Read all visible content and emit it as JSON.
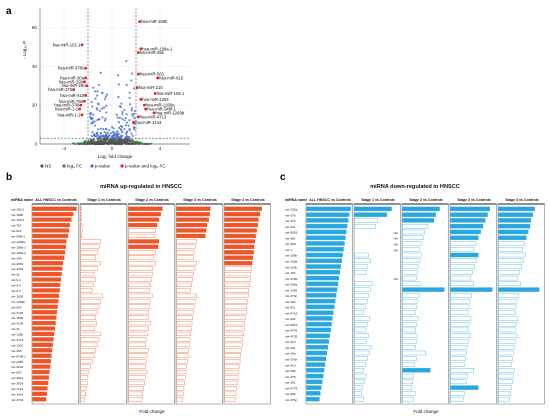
{
  "panels": {
    "a": "a",
    "b": "b",
    "c": "c"
  },
  "chart_data": [
    {
      "type": "scatter",
      "panel": "a",
      "title": "",
      "xlabel": "Log₂ fold change",
      "ylabel": "- Log₁₀ P",
      "xlim": [
        -6,
        6.5
      ],
      "ylim": [
        0,
        70
      ],
      "xticks": [
        -4,
        0,
        4
      ],
      "yticks": [
        0,
        20,
        40,
        60
      ],
      "fc_cutoff": [
        -2,
        2
      ],
      "p_cutoff": 3,
      "legend": [
        "NS",
        "log₂ FC",
        "p-value",
        "p-value and log₂ FC"
      ],
      "legend_colors": [
        "#555555",
        "#2e8b3a",
        "#4a6fd6",
        "#e02020"
      ],
      "labeled_points": [
        {
          "label": "hsa-miR-196b",
          "x": 2.3,
          "y": 63
        },
        {
          "label": "hsa-miR-101-1",
          "x": -2.5,
          "y": 51
        },
        {
          "label": "hsa-miR-196a-1",
          "x": 2.4,
          "y": 49
        },
        {
          "label": "hsa-miR-455",
          "x": 2.2,
          "y": 47
        },
        {
          "label": "hsa-miR-378c",
          "x": -2.2,
          "y": 39
        },
        {
          "label": "hsa-miR-503",
          "x": 2.2,
          "y": 36
        },
        {
          "label": "hsa-miR-615",
          "x": 3.8,
          "y": 34
        },
        {
          "label": "hsa-miR-30a",
          "x": -2.2,
          "y": 34
        },
        {
          "label": "hsa-miR-299",
          "x": -2.3,
          "y": 32
        },
        {
          "label": "hsa-miR-29c",
          "x": -2.1,
          "y": 30
        },
        {
          "label": "hsa-miR-210",
          "x": 2.1,
          "y": 29
        },
        {
          "label": "hsa-miR-375",
          "x": -3.2,
          "y": 28
        },
        {
          "label": "hsa-miR-105-1",
          "x": 3.6,
          "y": 26
        },
        {
          "label": "hsa-miR-410",
          "x": -2.2,
          "y": 25
        },
        {
          "label": "hsa-miR-1293",
          "x": 2.4,
          "y": 23
        },
        {
          "label": "hsa-miR-758",
          "x": -2.3,
          "y": 22
        },
        {
          "label": "hsa-miR-1269a",
          "x": 2.7,
          "y": 20
        },
        {
          "label": "hsa-miR-378i",
          "x": -2.6,
          "y": 20
        },
        {
          "label": "hsa-miR-548f-1",
          "x": 2.8,
          "y": 18
        },
        {
          "label": "hsa-miR-1-1",
          "x": -2.7,
          "y": 18
        },
        {
          "label": "hsa-miR-1269b",
          "x": 3.5,
          "y": 16
        },
        {
          "label": "hsa-miR-1-2",
          "x": -2.5,
          "y": 15
        },
        {
          "label": "hsa-miR-4713",
          "x": 2.2,
          "y": 14
        },
        {
          "label": "hsa-miR-3144",
          "x": 1.8,
          "y": 11
        }
      ]
    },
    {
      "type": "bar",
      "panel": "b",
      "title": "miRNA up-regulated in HNSCC",
      "xlabel": "Fold change",
      "row_header": "miRNA name",
      "column_headers": [
        "ALL HNSCC vs Controls",
        "Stage 1 vs Controls",
        "Stage 2 vs Controls",
        "Stage 3 vs Controls",
        "Stage 4 vs Controls"
      ],
      "categories": [
        "mir-105-1",
        "mir-196b",
        "mir-105-2",
        "mir-767",
        "mir-615",
        "mir-548f-1",
        "mir-1269a",
        "mir-196a-1",
        "mir-196a-2",
        "mir-196",
        "mir-4652",
        "mir-1293",
        "mir-31",
        "mir-9-1",
        "mir-9-2",
        "mir-9-3",
        "mir-1305",
        "mir-1269b",
        "mir-503",
        "mir-4746",
        "mir-4659",
        "mir-3199",
        "mir-21",
        "mir-135b",
        "mir-4713",
        "mir-1301",
        "mir-455",
        "mir-6798-1",
        "mir-2355",
        "mir-3144",
        "mir-937",
        "mir-3614",
        "mir-3929",
        "mir-7112",
        "mir-3619",
        "mir-4716"
      ],
      "colors": {
        "filled": "#ee5528",
        "outline": "#ee5528"
      },
      "series": [
        {
          "values": [
            13,
            12,
            11.5,
            11,
            10.8,
            10.5,
            10,
            9.8,
            9.6,
            9.4,
            9,
            8.8,
            8.6,
            8.4,
            8.2,
            8,
            7.8,
            7.6,
            7.4,
            7.2,
            7,
            6.8,
            6.6,
            6.4,
            6.2,
            6,
            5.8,
            5.6,
            5.4,
            5.2,
            5,
            4.8,
            4.6,
            4.4,
            4.2,
            4
          ]
        },
        {
          "values": [
            0.3,
            0.4,
            0.2,
            0.3,
            0.5,
            0.4,
            6,
            5.5,
            5,
            4.5,
            6,
            5,
            4,
            4.5,
            3.8,
            3.5,
            6.5,
            6,
            5.5,
            5,
            4.5,
            4.8,
            4.2,
            6,
            5.5,
            5,
            4.5,
            4,
            3.5,
            3,
            2.5,
            2.2,
            2,
            1.8,
            1.5,
            1.2
          ]
        },
        {
          "values": [
            10,
            9.5,
            9,
            8.5,
            8,
            7.8,
            9,
            8.8,
            8,
            7.5,
            8,
            7.2,
            7,
            6.8,
            6.5,
            6.3,
            7,
            6.5,
            6.2,
            6,
            5.8,
            6.5,
            6,
            5.5,
            5.2,
            5,
            5.8,
            5.5,
            5.2,
            5,
            5.5,
            5,
            4.8,
            4.5,
            4.2,
            4
          ]
        },
        {
          "values": [
            10,
            9.8,
            9.5,
            9,
            8.8,
            8.5,
            6,
            5.5,
            5.2,
            5,
            5.8,
            5.5,
            5,
            4.8,
            4.5,
            4.2,
            6,
            5.6,
            5.2,
            5,
            4.8,
            4.6,
            4.4,
            4.2,
            4,
            3.8,
            3.6,
            3.4,
            3.2,
            3,
            2.8,
            2.6,
            2.4,
            2.2,
            2,
            1.8
          ]
        },
        {
          "values": [
            11,
            10.5,
            10,
            9.8,
            9.5,
            9.2,
            9,
            8.8,
            8.6,
            8.4,
            8.2,
            8,
            7.8,
            7.6,
            7.4,
            7.2,
            7,
            6.8,
            6.6,
            6.4,
            6.2,
            6,
            5.8,
            5.6,
            5.4,
            5.2,
            5,
            4.8,
            4.6,
            4.4,
            4.2,
            4,
            3.8,
            3.6,
            3.4,
            3.2
          ]
        }
      ]
    },
    {
      "type": "bar",
      "panel": "c",
      "title": "miRNA down-regulated in HNSCC",
      "xlabel": "Fold change",
      "row_header": "miRNA name",
      "column_headers": [
        "ALL HNSCC vs Controls",
        "Stage 1 vs Controls",
        "Stage 2 vs Controls",
        "Stage 3 vs Controls",
        "Stage 4 vs Controls"
      ],
      "na_label": "N/A",
      "categories": [
        "mir-133a",
        "mir-376",
        "mir-375",
        "mir-211",
        "mir-5693",
        "mir-381",
        "mir-499",
        "mir-1",
        "mir-206b",
        "mir-130a",
        "mir-133b",
        "mir-153",
        "mir-376d",
        "mir-206a",
        "mir-1258",
        "mir-376c",
        "mir-299",
        "mir-411",
        "mir-3718",
        "mir-202",
        "mir-6512",
        "mir-4776",
        "mir-4735",
        "mir-410",
        "mir-29c",
        "mir-30a",
        "mir-376e",
        "mir-410",
        "mir-206",
        "mir-379",
        "mir-101",
        "mir-4779",
        "mir-99a",
        "mir-376c"
      ],
      "colors": {
        "filled": "#29a8e0",
        "outline": "#29a8e0"
      },
      "series": [
        {
          "values": [
            9.5,
            9.2,
            9,
            8.8,
            8.6,
            8.4,
            8.2,
            8,
            7.8,
            7.6,
            7.4,
            7.2,
            7,
            6.8,
            6.6,
            6.4,
            6.2,
            6,
            5.8,
            5.6,
            5.4,
            5.2,
            5,
            4.8,
            4.6,
            4.4,
            4.2,
            4,
            3.8,
            3.6,
            3.4,
            3.2,
            3,
            2.8
          ]
        },
        {
          "values": [
            8,
            7,
            5,
            4.5,
            0,
            0,
            0,
            0,
            3,
            3.5,
            2.8,
            2.5,
            0,
            3.8,
            3.4,
            3,
            2.8,
            2.4,
            2,
            3.2,
            2.8,
            2.5,
            3,
            2.6,
            3.6,
            3.2,
            2.8,
            2.4,
            2,
            2.5,
            2.2,
            1.8,
            1.5,
            2
          ]
        },
        {
          "values": [
            8,
            7.2,
            6.8,
            5.5,
            4.8,
            4.5,
            4,
            3.6,
            4.2,
            3.8,
            3.4,
            3.2,
            3,
            4,
            9,
            3.6,
            3.2,
            3,
            2.8,
            3.4,
            3,
            2.8,
            3.2,
            3,
            2.8,
            5,
            3,
            2.6,
            6,
            2.4,
            2.2,
            2,
            2.8,
            2.4
          ]
        },
        {
          "values": [
            8.5,
            8,
            7.5,
            7,
            6.5,
            6,
            5.5,
            5,
            6,
            5.6,
            5.2,
            4.8,
            4.4,
            5,
            9,
            4.6,
            4.2,
            4,
            3.8,
            4.4,
            4,
            3.8,
            4.2,
            3.8,
            3.6,
            3.4,
            3.2,
            3,
            5,
            3.6,
            3.4,
            6,
            3,
            2.8
          ]
        },
        {
          "values": [
            7.8,
            7.4,
            7,
            6.8,
            6.4,
            6,
            5.6,
            5.2,
            5.8,
            5.4,
            5,
            4.6,
            4.2,
            4.8,
            8.8,
            4.4,
            4,
            3.8,
            3.6,
            4.2,
            3.8,
            3.6,
            4,
            3.6,
            3.4,
            3.2,
            3,
            2.8,
            3.4,
            3.2,
            3,
            2.8,
            2.6,
            2.4
          ]
        }
      ]
    }
  ]
}
